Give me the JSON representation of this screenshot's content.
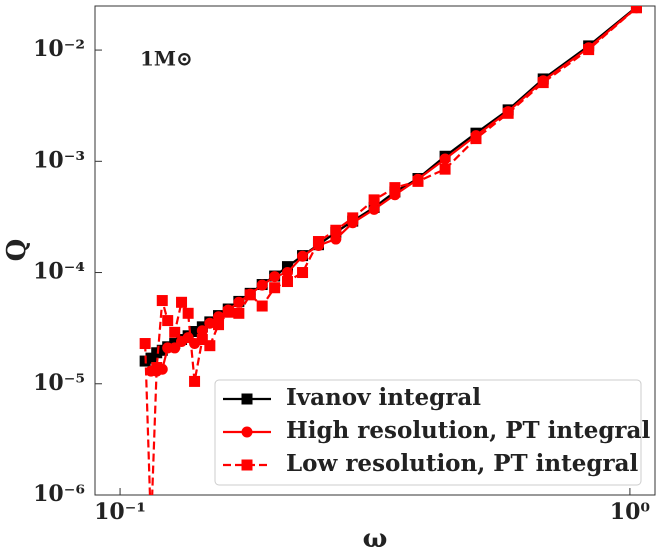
{
  "chart_data": {
    "type": "line",
    "xlabel": "ω",
    "ylabel": "Q",
    "annotation": "1M⊙",
    "xscale": "log",
    "yscale": "log",
    "xlim": [
      0.0893,
      1.12
    ],
    "ylim": [
      1e-06,
      0.0249
    ],
    "xticks": [
      {
        "value": 0.1,
        "label": "10⁻¹"
      },
      {
        "value": 1,
        "label": "10⁰"
      }
    ],
    "yticks": [
      {
        "value": 1e-06,
        "label": "10⁻⁶"
      },
      {
        "value": 1e-05,
        "label": "10⁻⁵"
      },
      {
        "value": 0.0001,
        "label": "10⁻⁴"
      },
      {
        "value": 0.001,
        "label": "10⁻³"
      },
      {
        "value": 0.01,
        "label": "10⁻²"
      }
    ],
    "legend": "lower right",
    "x": [
      0.112,
      0.115,
      0.118,
      0.121,
      0.124,
      0.128,
      0.132,
      0.136,
      0.14,
      0.145,
      0.15,
      0.156,
      0.163,
      0.171,
      0.18,
      0.19,
      0.201,
      0.213,
      0.228,
      0.245,
      0.265,
      0.286,
      0.315,
      0.346,
      0.384,
      0.434,
      0.499,
      0.577,
      0.676,
      0.83,
      1.03
    ],
    "series": [
      {
        "name": "Ivanov integral",
        "color": "#000000",
        "marker": "square",
        "linestyle": "solid",
        "values": [
          1.6e-05,
          1.7e-05,
          1.9e-05,
          2e-05,
          2.15e-05,
          2.3e-05,
          2.5e-05,
          2.7e-05,
          2.95e-05,
          3.25e-05,
          3.6e-05,
          4.1e-05,
          4.7e-05,
          5.5e-05,
          6.5e-05,
          7.8e-05,
          9.3e-05,
          0.000113,
          0.000142,
          0.000178,
          0.00023,
          0.00029,
          0.000385,
          0.00053,
          0.0007,
          0.00111,
          0.00179,
          0.0029,
          0.0055,
          0.0109,
          0.0244
        ]
      },
      {
        "name": "High resolution, PT integral",
        "color": "#ff0000",
        "marker": "circle",
        "linestyle": "solid",
        "values": [
          null,
          1.3e-05,
          1.3e-05,
          1.35e-05,
          2.1e-05,
          2.1e-05,
          2.4e-05,
          2.6e-05,
          2.3e-05,
          3e-05,
          3.5e-05,
          4e-05,
          4.6e-05,
          5.4e-05,
          6.4e-05,
          7.7e-05,
          9.2e-05,
          0.0001,
          0.00014,
          0.000175,
          0.0002,
          0.00028,
          0.00037,
          0.0005,
          0.00069,
          0.00105,
          0.0017,
          0.0028,
          0.0053,
          0.0105,
          0.024
        ]
      },
      {
        "name": "Low resolution, PT integral",
        "color": "#ff0000",
        "marker": "square",
        "linestyle": "dashed",
        "values": [
          2.3e-05,
          5e-07,
          1.4e-05,
          5.6e-05,
          3.7e-05,
          2.9e-05,
          5.4e-05,
          4.3e-05,
          1.05e-05,
          2.5e-05,
          2.2e-05,
          3.4e-05,
          4.4e-05,
          4.3e-05,
          6.3e-05,
          5e-05,
          7.3e-05,
          8.3e-05,
          0.0001,
          0.00019,
          0.00024,
          0.00031,
          0.00045,
          0.00058,
          0.00066,
          0.00085,
          0.0016,
          0.0027,
          0.0051,
          0.0101,
          0.024
        ]
      }
    ]
  }
}
